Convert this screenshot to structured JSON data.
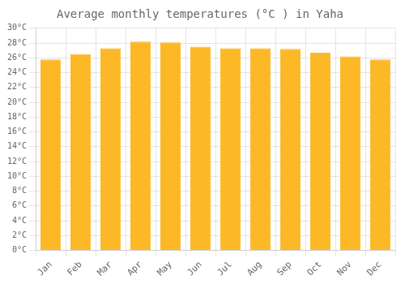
{
  "chart_data": {
    "type": "bar",
    "title": "Average monthly temperatures (°C ) in Yaha",
    "categories": [
      "Jan",
      "Feb",
      "Mar",
      "Apr",
      "May",
      "Jun",
      "Jul",
      "Aug",
      "Sep",
      "Oct",
      "Nov",
      "Dec"
    ],
    "values": [
      25.8,
      26.5,
      27.3,
      28.2,
      28.1,
      27.5,
      27.3,
      27.3,
      27.2,
      26.7,
      26.2,
      25.8
    ],
    "color": "#FDB827",
    "ylim": [
      0,
      30
    ],
    "yticks": [
      {
        "value": 0,
        "label": "0°C"
      },
      {
        "value": 2,
        "label": "2°C"
      },
      {
        "value": 4,
        "label": "4°C"
      },
      {
        "value": 6,
        "label": "6°C"
      },
      {
        "value": 8,
        "label": "8°C"
      },
      {
        "value": 10,
        "label": "10°C"
      },
      {
        "value": 12,
        "label": "12°C"
      },
      {
        "value": 14,
        "label": "14°C"
      },
      {
        "value": 16,
        "label": "16°C"
      },
      {
        "value": 18,
        "label": "18°C"
      },
      {
        "value": 20,
        "label": "20°C"
      },
      {
        "value": 22,
        "label": "22°C"
      },
      {
        "value": 24,
        "label": "24°C"
      },
      {
        "value": 26,
        "label": "26°C"
      },
      {
        "value": 28,
        "label": "28°C"
      },
      {
        "value": 30,
        "label": "30°C"
      }
    ],
    "grid": true
  }
}
